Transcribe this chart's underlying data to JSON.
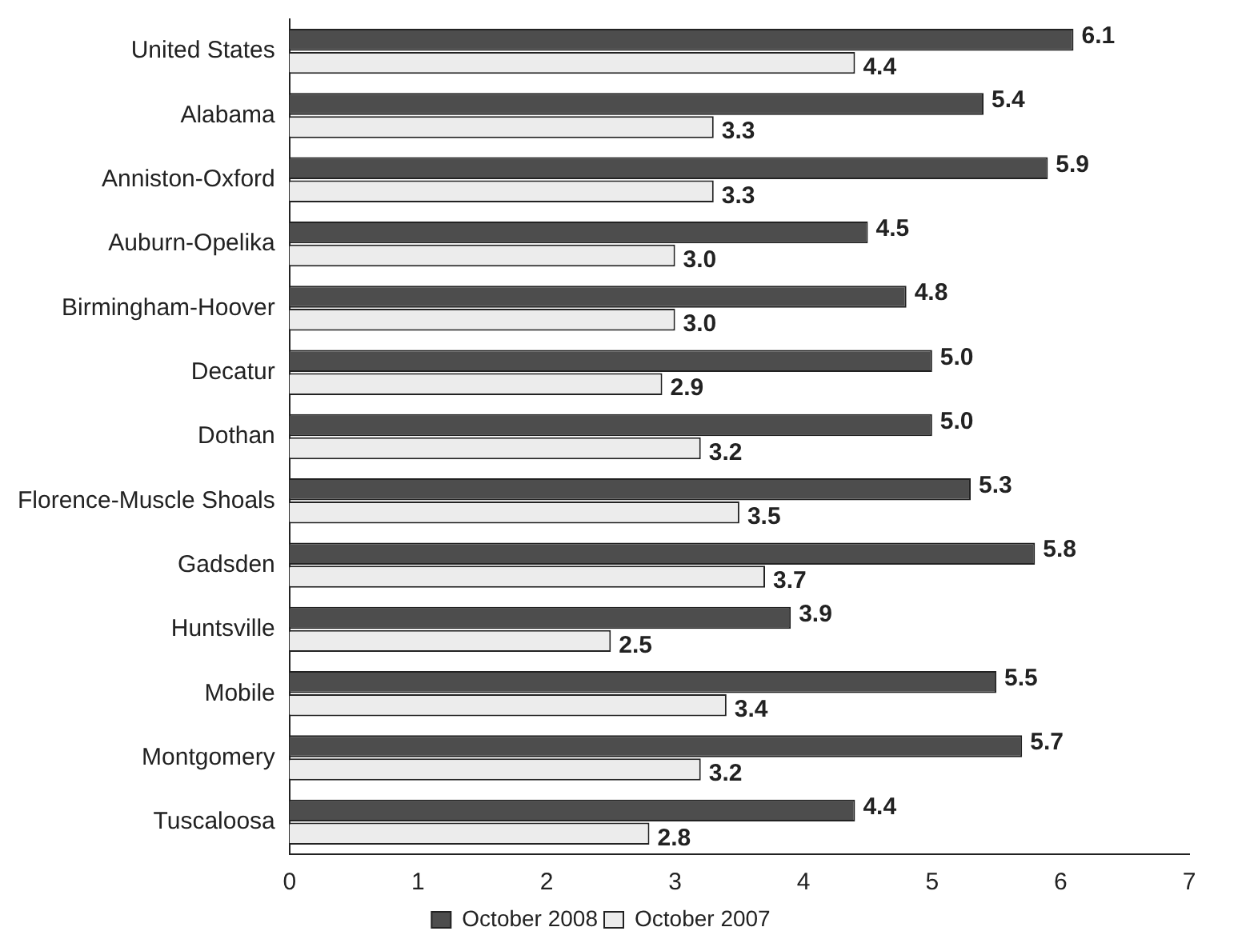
{
  "chart_data": {
    "type": "bar",
    "orientation": "horizontal",
    "categories": [
      "United States",
      "Alabama",
      "Anniston-Oxford",
      "Auburn-Opelika",
      "Birmingham-Hoover",
      "Decatur",
      "Dothan",
      "Florence-Muscle Shoals",
      "Gadsden",
      "Huntsville",
      "Mobile",
      "Montgomery",
      "Tuscaloosa"
    ],
    "series": [
      {
        "name": "October 2008",
        "color": "#4d4d4d",
        "values": [
          6.1,
          5.4,
          5.9,
          4.5,
          4.8,
          5.0,
          5.0,
          5.3,
          5.8,
          3.9,
          5.5,
          5.7,
          4.4
        ],
        "value_labels": [
          "6.1",
          "5.4",
          "5.9",
          "4.5",
          "4.8",
          "5.0",
          "5.0",
          "5.3",
          "5.8",
          "3.9",
          "5.5",
          "5.7",
          "4.4"
        ]
      },
      {
        "name": "October 2007",
        "color": "#ececec",
        "values": [
          4.4,
          3.3,
          3.3,
          3.0,
          3.0,
          2.9,
          3.2,
          3.5,
          3.7,
          2.5,
          3.4,
          3.2,
          2.8
        ],
        "value_labels": [
          "4.4",
          "3.3",
          "3.3",
          "3.0",
          "3.0",
          "2.9",
          "3.2",
          "3.5",
          "3.7",
          "2.5",
          "3.4",
          "3.2",
          "2.8"
        ]
      }
    ],
    "xlim": [
      0,
      7
    ],
    "xticks": [
      0,
      1,
      2,
      3,
      4,
      5,
      6,
      7
    ],
    "grid": false,
    "legend": "bottom"
  }
}
